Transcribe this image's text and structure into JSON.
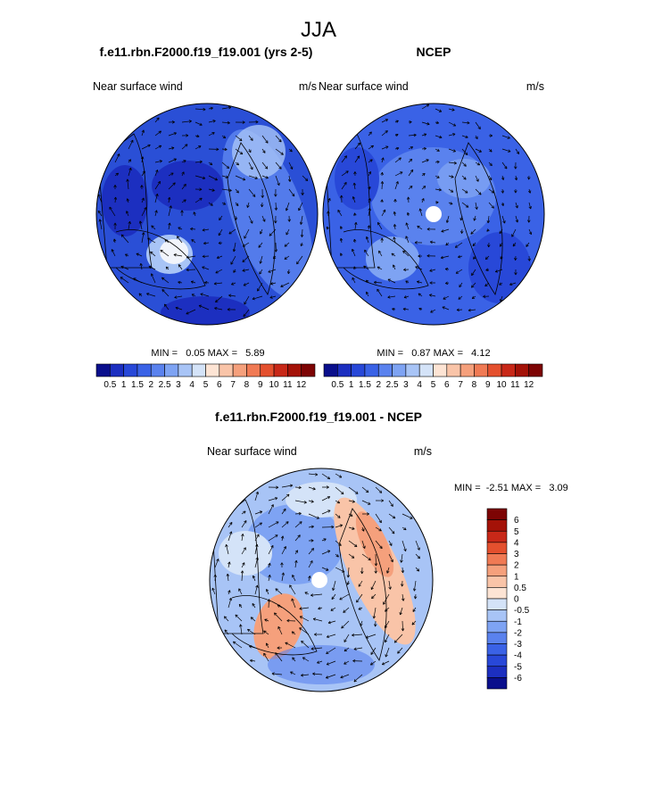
{
  "figure_title": "JJA",
  "colors": {
    "abs_palette": [
      "#0a0f8c",
      "#1c2fc0",
      "#2848d8",
      "#3a62e6",
      "#5a82ee",
      "#7ea3f3",
      "#a8c4f6",
      "#d4e3f8",
      "#fde4d4",
      "#f9c4a8",
      "#f5a07c",
      "#f07a54",
      "#e4502e",
      "#c82818",
      "#a41208",
      "#7d0404"
    ],
    "diff_palette": [
      "#0a0f8c",
      "#1c2fc0",
      "#2848d8",
      "#3a62e6",
      "#5a82ee",
      "#7ea3f3",
      "#a8c4f6",
      "#d4e3f8",
      "#fde4d4",
      "#f9c4a8",
      "#f5a07c",
      "#f07a54",
      "#e4502e",
      "#c82818",
      "#a41208",
      "#7d0404"
    ]
  },
  "chart_data": [
    {
      "type": "heatmap",
      "projection": "north-polar-stereographic",
      "title": "f.e11.rbn.F2000.f19_f19.001 (yrs 2-5)",
      "left_label": "Near surface wind",
      "right_label": "m/s",
      "stats_text": "MIN =   0.05 MAX =   5.89",
      "min": 0.05,
      "max": 5.89,
      "overlay": "wind vectors",
      "colorbar": {
        "orientation": "horizontal",
        "ticks": [
          "0.5",
          "1",
          "1.5",
          "2",
          "2.5",
          "3",
          "4",
          "5",
          "6",
          "7",
          "8",
          "9",
          "10",
          "11",
          "12"
        ]
      }
    },
    {
      "type": "heatmap",
      "projection": "north-polar-stereographic",
      "title": "NCEP",
      "left_label": "Near surface wind",
      "right_label": "m/s",
      "stats_text": "MIN =   0.87 MAX =   4.12",
      "min": 0.87,
      "max": 4.12,
      "overlay": "wind vectors",
      "colorbar": {
        "orientation": "horizontal",
        "ticks": [
          "0.5",
          "1",
          "1.5",
          "2",
          "2.5",
          "3",
          "4",
          "5",
          "6",
          "7",
          "8",
          "9",
          "10",
          "11",
          "12"
        ]
      }
    },
    {
      "type": "heatmap",
      "projection": "north-polar-stereographic",
      "title": "f.e11.rbn.F2000.f19_f19.001 - NCEP",
      "left_label": "Near surface wind",
      "right_label": "m/s",
      "stats_text": "MIN =  -2.51 MAX =   3.09",
      "min": -2.51,
      "max": 3.09,
      "overlay": "wind vectors",
      "colorbar": {
        "orientation": "vertical",
        "ticks": [
          "6",
          "5",
          "4",
          "3",
          "2",
          "1",
          "0.5",
          "0",
          "-0.5",
          "-1",
          "-2",
          "-3",
          "-4",
          "-5",
          "-6"
        ]
      }
    }
  ]
}
